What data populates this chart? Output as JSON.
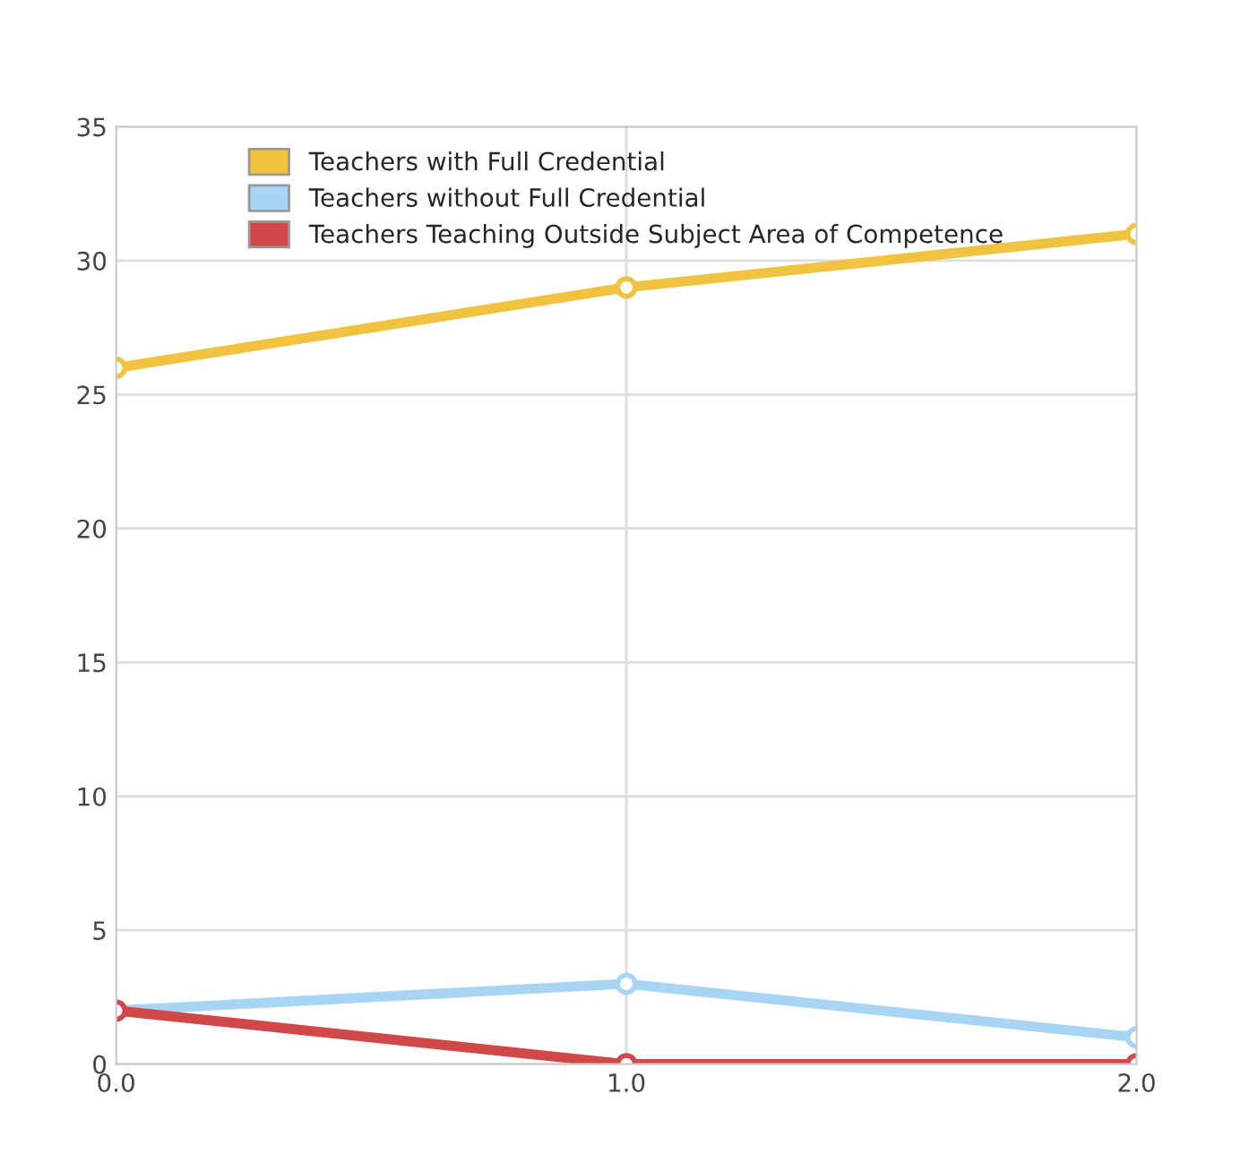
{
  "chart_data": {
    "type": "line",
    "x": [
      0,
      1,
      2
    ],
    "series": [
      {
        "name": "Teachers with Full Credential",
        "color": "#efc23f",
        "values": [
          26,
          29,
          31
        ]
      },
      {
        "name": "Teachers without Full Credential",
        "color": "#a9d5f5",
        "values": [
          2,
          3,
          1
        ]
      },
      {
        "name": "Teachers Teaching Outside Subject Area of Competence",
        "color": "#d04848",
        "values": [
          2,
          0,
          0
        ]
      }
    ],
    "xlim": [
      0,
      2
    ],
    "xticks": [
      {
        "value": 0,
        "label": "0.0"
      },
      {
        "value": 1,
        "label": "1.0"
      },
      {
        "value": 2,
        "label": "2.0"
      }
    ],
    "ylim": [
      0,
      35
    ],
    "yticks": [
      0,
      5,
      10,
      15,
      20,
      25,
      30,
      35
    ],
    "grid": true,
    "legend": "top",
    "marker": "circle",
    "line_style": "solid"
  }
}
